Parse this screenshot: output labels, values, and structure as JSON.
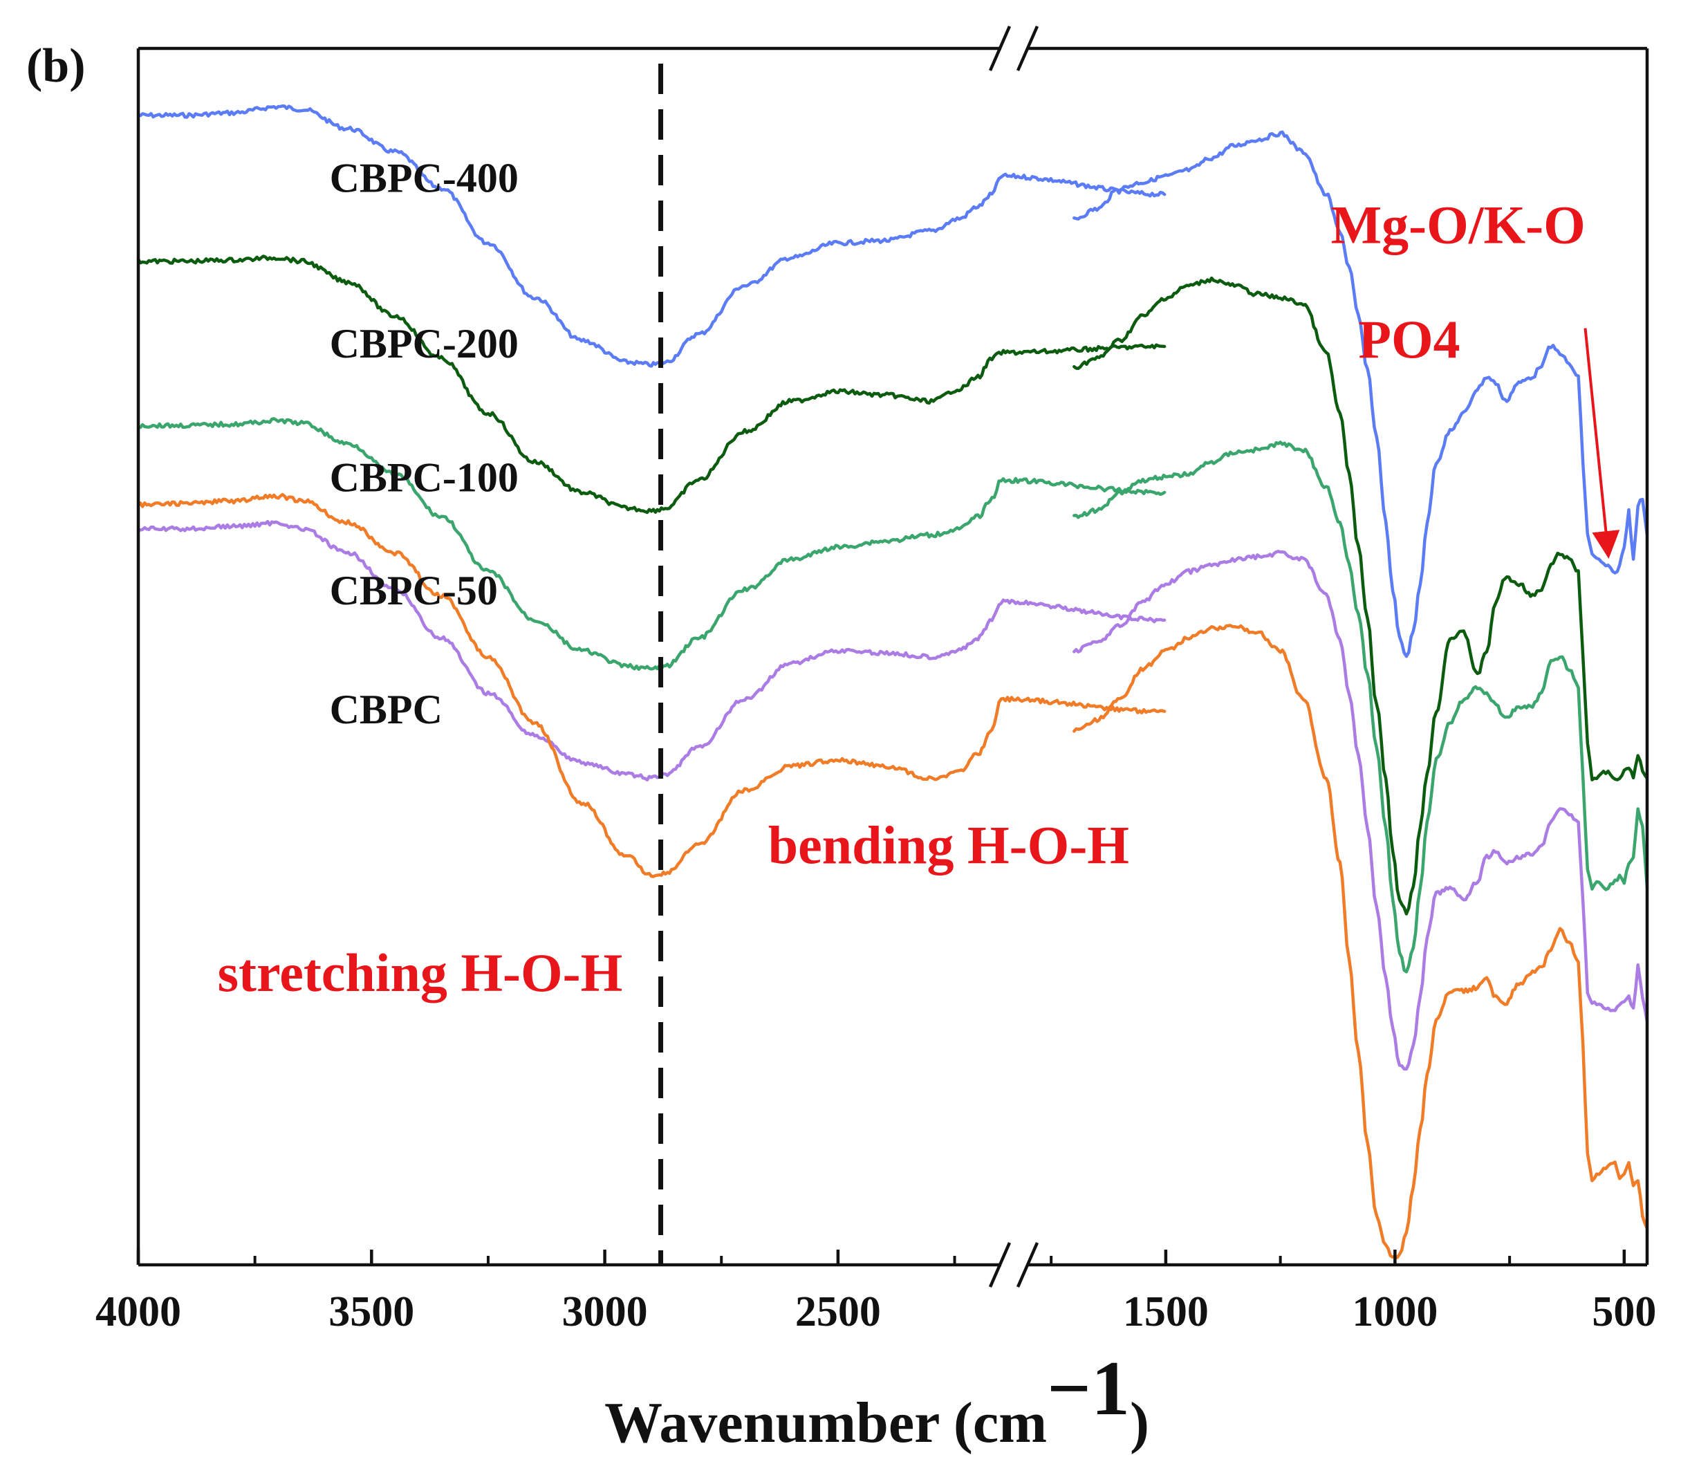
{
  "panel_label": "(b)",
  "colors": {
    "axis": "#111111",
    "annotation": "#e8151b",
    "reference_line": "#111111"
  },
  "chart_data": {
    "type": "line",
    "title": "",
    "xlabel": "Wavenumber (cm",
    "xlabel_superscript": "−1",
    "xlabel_suffix": ")",
    "ylabel": "",
    "x_reversed": true,
    "x_axis_break": {
      "left_segment": [
        4000,
        2150
      ],
      "right_segment": [
        1800,
        450
      ]
    },
    "xticks": [
      4000,
      3500,
      3000,
      2500,
      1500,
      1000,
      500
    ],
    "xtick_labels": [
      "4000",
      "3500",
      "3000",
      "2500",
      "1500",
      "1000",
      "500"
    ],
    "minor_xticks": [
      3750,
      3250,
      2750,
      2250,
      1750,
      1250,
      750
    ],
    "ylim": [
      0,
      100
    ],
    "grid": false,
    "reference_line": {
      "x": 2880,
      "style": "dashed"
    },
    "series": [
      {
        "name": "CBPC-400",
        "label": "CBPC-400",
        "color": "#5b7cf5",
        "x": [
          4000,
          3900,
          3800,
          3700,
          3650,
          3550,
          3450,
          3350,
          3250,
          3150,
          3050,
          2950,
          2900,
          2870,
          2800,
          2700,
          2600,
          2500,
          2400,
          2300,
          2240,
          2200,
          2170,
          2150,
          1800,
          1700,
          1650,
          1600,
          1550,
          1500,
          1450,
          1400,
          1350,
          1300,
          1250,
          1200,
          1150,
          1120,
          1100,
          1080,
          1060,
          1040,
          1020,
          1005,
          990,
          975,
          960,
          945,
          930,
          910,
          880,
          850,
          820,
          800,
          780,
          760,
          730,
          700,
          680,
          660,
          640,
          620,
          600,
          590,
          580,
          570,
          560,
          540,
          520,
          510,
          500,
          490,
          480,
          470,
          460,
          450
        ],
        "y": [
          94.5,
          94.5,
          94.7,
          95.2,
          95.0,
          93.4,
          91.5,
          88.5,
          84.0,
          79.5,
          76.0,
          74.2,
          74.0,
          74.2,
          76.5,
          80.5,
          82.8,
          84.0,
          84.2,
          85.0,
          86.0,
          87.0,
          88.0,
          89.5,
          88.0,
          86.0,
          86.8,
          88.5,
          89.0,
          89.5,
          90.0,
          91.0,
          92.0,
          92.5,
          93.0,
          91.5,
          88.0,
          85.0,
          82.0,
          78.0,
          73.5,
          68.0,
          61.0,
          55.5,
          51.5,
          50.0,
          52.0,
          56.0,
          61.0,
          66.0,
          68.5,
          70.0,
          72.0,
          73.0,
          72.5,
          71.0,
          72.5,
          73.0,
          74.0,
          75.5,
          75.0,
          74.0,
          73.0,
          66.0,
          60.0,
          58.5,
          58.0,
          57.5,
          56.8,
          57.5,
          59.0,
          62.0,
          58.0,
          62.5,
          63.0,
          60.0
        ],
        "label_x": 3590,
        "label_y": 88.2
      },
      {
        "name": "CBPC-200",
        "label": "CBPC-200",
        "color": "#0c5c10",
        "x": [
          4000,
          3900,
          3800,
          3700,
          3650,
          3550,
          3450,
          3350,
          3250,
          3150,
          3050,
          2950,
          2900,
          2870,
          2800,
          2700,
          2600,
          2500,
          2400,
          2300,
          2240,
          2200,
          2170,
          2150,
          1800,
          1700,
          1650,
          1600,
          1550,
          1500,
          1450,
          1400,
          1350,
          1300,
          1250,
          1200,
          1150,
          1120,
          1100,
          1080,
          1060,
          1040,
          1020,
          1005,
          990,
          975,
          960,
          945,
          930,
          910,
          880,
          850,
          820,
          800,
          780,
          760,
          730,
          700,
          680,
          660,
          640,
          620,
          600,
          590,
          580,
          570,
          560,
          540,
          520,
          510,
          500,
          490,
          480,
          470,
          460,
          450
        ],
        "y": [
          82.5,
          82.5,
          82.6,
          82.8,
          82.5,
          80.8,
          78.0,
          74.5,
          70.0,
          66.0,
          63.5,
          62.2,
          62.0,
          62.2,
          64.5,
          68.5,
          71.0,
          71.8,
          71.5,
          71.0,
          72.0,
          73.0,
          74.5,
          75.0,
          75.5,
          73.8,
          74.5,
          76.0,
          78.0,
          79.5,
          80.5,
          81.0,
          80.5,
          79.8,
          79.5,
          79.0,
          75.0,
          70.0,
          65.0,
          59.0,
          53.0,
          46.0,
          40.0,
          34.0,
          30.0,
          29.0,
          31.0,
          36.0,
          40.5,
          45.5,
          51.5,
          52.0,
          48.5,
          50.5,
          54.5,
          56.5,
          56.0,
          55.0,
          55.5,
          57.5,
          58.5,
          58.0,
          57.0,
          50.0,
          43.0,
          40.0,
          40.0,
          40.5,
          40.0,
          40.0,
          40.5,
          41.0,
          40.0,
          42.0,
          40.5,
          40.0
        ],
        "label_x": 3590,
        "label_y": 74.6
      },
      {
        "name": "CBPC-100",
        "label": "CBPC-100",
        "color": "#3aa56d",
        "x": [
          4000,
          3900,
          3800,
          3700,
          3650,
          3550,
          3450,
          3350,
          3250,
          3150,
          3050,
          2950,
          2900,
          2870,
          2800,
          2700,
          2600,
          2500,
          2400,
          2300,
          2240,
          2200,
          2170,
          2150,
          1800,
          1700,
          1650,
          1600,
          1550,
          1500,
          1450,
          1400,
          1350,
          1300,
          1250,
          1200,
          1150,
          1120,
          1100,
          1080,
          1060,
          1040,
          1020,
          1005,
          990,
          975,
          960,
          945,
          930,
          910,
          880,
          850,
          820,
          800,
          780,
          760,
          730,
          700,
          680,
          660,
          640,
          620,
          600,
          590,
          580,
          570,
          560,
          540,
          520,
          510,
          500,
          490,
          480,
          470,
          460,
          450
        ],
        "y": [
          69.0,
          69.0,
          69.1,
          69.4,
          69.2,
          67.5,
          65.0,
          61.5,
          57.0,
          53.0,
          50.5,
          49.2,
          49.0,
          49.2,
          51.5,
          55.5,
          58.0,
          59.0,
          59.5,
          60.0,
          60.5,
          61.5,
          63.0,
          64.5,
          63.5,
          61.5,
          62.0,
          63.5,
          64.5,
          64.8,
          65.0,
          66.0,
          66.8,
          67.0,
          67.5,
          67.0,
          64.0,
          61.0,
          57.5,
          53.5,
          48.5,
          42.5,
          36.0,
          30.0,
          25.5,
          24.0,
          26.0,
          31.0,
          36.5,
          41.5,
          44.5,
          46.5,
          47.5,
          47.0,
          46.0,
          45.0,
          45.8,
          46.0,
          47.0,
          49.5,
          50.0,
          49.0,
          47.5,
          40.0,
          32.5,
          31.0,
          31.5,
          31.0,
          31.5,
          32.0,
          31.5,
          33.0,
          33.5,
          37.5,
          36.0,
          31.0
        ],
        "label_x": 3590,
        "label_y": 63.6
      },
      {
        "name": "CBPC-50",
        "label": "CBPC-50",
        "color": "#ab7ce4",
        "x": [
          4000,
          3900,
          3800,
          3700,
          3650,
          3550,
          3450,
          3350,
          3250,
          3150,
          3050,
          2950,
          2900,
          2870,
          2800,
          2700,
          2600,
          2500,
          2400,
          2300,
          2240,
          2200,
          2170,
          2150,
          1800,
          1700,
          1650,
          1600,
          1550,
          1500,
          1450,
          1400,
          1350,
          1300,
          1250,
          1200,
          1150,
          1120,
          1100,
          1080,
          1060,
          1040,
          1020,
          1005,
          990,
          975,
          960,
          945,
          930,
          910,
          880,
          850,
          820,
          800,
          780,
          760,
          730,
          700,
          680,
          660,
          640,
          620,
          600,
          590,
          580,
          570,
          560,
          540,
          520,
          510,
          500,
          490,
          480,
          470,
          460,
          450
        ],
        "y": [
          60.5,
          60.5,
          60.7,
          61.0,
          60.5,
          58.5,
          55.5,
          51.5,
          47.0,
          43.5,
          41.3,
          40.3,
          40.0,
          40.3,
          42.5,
          46.5,
          49.5,
          50.5,
          50.3,
          50.0,
          50.5,
          51.5,
          53.0,
          54.5,
          53.0,
          50.5,
          51.2,
          52.5,
          54.5,
          56.0,
          57.0,
          57.5,
          58.0,
          58.2,
          58.5,
          58.0,
          55.0,
          51.5,
          47.0,
          42.0,
          36.0,
          29.5,
          23.5,
          19.5,
          16.5,
          16.0,
          18.0,
          22.0,
          27.0,
          30.5,
          31.0,
          30.0,
          31.5,
          33.5,
          34.0,
          33.0,
          33.5,
          33.8,
          34.5,
          36.5,
          37.5,
          37.0,
          36.5,
          30.0,
          22.5,
          21.5,
          21.5,
          21.0,
          21.0,
          21.5,
          21.5,
          22.0,
          21.0,
          24.5,
          22.0,
          20.0
        ],
        "label_x": 3590,
        "label_y": 54.3
      },
      {
        "name": "CBPC",
        "label": "CBPC",
        "color": "#f07c28",
        "x": [
          4000,
          3900,
          3800,
          3700,
          3650,
          3550,
          3450,
          3350,
          3250,
          3150,
          3050,
          2950,
          2900,
          2870,
          2800,
          2700,
          2600,
          2500,
          2400,
          2300,
          2240,
          2200,
          2170,
          2150,
          1800,
          1700,
          1650,
          1600,
          1550,
          1500,
          1450,
          1400,
          1350,
          1300,
          1250,
          1200,
          1150,
          1120,
          1100,
          1080,
          1060,
          1040,
          1020,
          1005,
          990,
          975,
          960,
          945,
          930,
          910,
          880,
          850,
          820,
          800,
          780,
          760,
          730,
          700,
          680,
          660,
          640,
          620,
          600,
          590,
          580,
          570,
          560,
          540,
          520,
          510,
          500,
          490,
          480,
          470,
          460,
          450
        ],
        "y": [
          62.5,
          62.6,
          62.8,
          63.2,
          62.8,
          61.0,
          58.5,
          55.0,
          50.0,
          44.5,
          38.0,
          33.5,
          32.0,
          32.2,
          34.5,
          39.0,
          41.0,
          41.5,
          41.0,
          40.0,
          40.5,
          42.0,
          44.0,
          46.5,
          45.5,
          44.0,
          44.8,
          46.5,
          49.0,
          50.5,
          51.5,
          52.3,
          52.5,
          52.0,
          50.5,
          46.5,
          40.0,
          33.0,
          25.0,
          17.5,
          10.0,
          4.0,
          1.5,
          0.5,
          0.8,
          2.5,
          6.5,
          11.0,
          15.5,
          20.0,
          22.5,
          22.5,
          22.8,
          23.5,
          22.0,
          21.5,
          23.0,
          24.0,
          24.5,
          26.0,
          27.5,
          26.5,
          25.0,
          18.0,
          9.0,
          7.0,
          7.5,
          8.0,
          8.5,
          7.0,
          7.5,
          8.5,
          6.5,
          7.0,
          4.0,
          3.0
        ],
        "label_x": 3590,
        "label_y": 44.5
      }
    ],
    "annotations": [
      {
        "text": "stretching H-O-H",
        "x": 3830,
        "y": 22.5,
        "color": "#e8151b"
      },
      {
        "text": "bending H-O-H",
        "x": 2650,
        "y": 33.0,
        "color": "#e8151b"
      },
      {
        "text": "Mg-O/K-O",
        "x": 1140,
        "y": 84.0,
        "color": "#e8151b"
      },
      {
        "text": "PO4",
        "x": 1080,
        "y": 74.6,
        "color": "#e8151b"
      }
    ],
    "arrow": {
      "from_x": 585,
      "from_y": 77.0,
      "to_x": 535,
      "to_y": 58.5,
      "color": "#e8151b"
    }
  }
}
